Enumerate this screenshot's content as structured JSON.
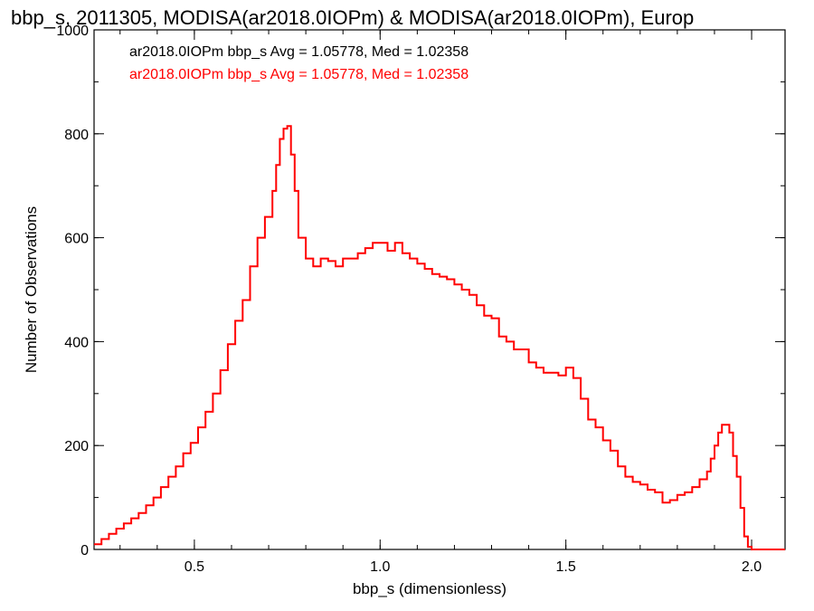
{
  "chart_data": {
    "type": "line",
    "title": "bbp_s, 2011305, MODISA(ar2018.0IOPm) & MODISA(ar2018.0IOPm), Europ",
    "xlabel": "bbp_s (dimensionless)",
    "ylabel": "Number of Observations",
    "xlim": [
      0.23,
      2.09
    ],
    "ylim": [
      0,
      1000
    ],
    "xticks": [
      {
        "v": 0.5,
        "label": "0.5"
      },
      {
        "v": 1.0,
        "label": "1.0"
      },
      {
        "v": 1.5,
        "label": "1.5"
      },
      {
        "v": 2.0,
        "label": "2.0"
      }
    ],
    "yticks": [
      {
        "v": 0,
        "label": "0"
      },
      {
        "v": 200,
        "label": "200"
      },
      {
        "v": 400,
        "label": "400"
      },
      {
        "v": 600,
        "label": "600"
      },
      {
        "v": 800,
        "label": "800"
      },
      {
        "v": 1000,
        "label": "1000"
      }
    ],
    "x_minor_step": 0.1,
    "y_minor_step": 100,
    "grid": false,
    "legend_position": "top-left",
    "annotations": [
      {
        "text": "ar2018.0IOPm bbp_s Avg = 1.05778, Med = 1.02358",
        "color": "#000000"
      },
      {
        "text": "ar2018.0IOPm bbp_s Avg = 1.05778, Med = 1.02358",
        "color": "#ff0000"
      }
    ],
    "series": [
      {
        "color": "#ff0000",
        "style": "step",
        "x": [
          0.23,
          0.25,
          0.27,
          0.29,
          0.31,
          0.33,
          0.35,
          0.37,
          0.39,
          0.41,
          0.43,
          0.45,
          0.47,
          0.49,
          0.51,
          0.53,
          0.55,
          0.57,
          0.59,
          0.61,
          0.63,
          0.65,
          0.67,
          0.69,
          0.71,
          0.72,
          0.73,
          0.74,
          0.75,
          0.76,
          0.77,
          0.78,
          0.8,
          0.82,
          0.84,
          0.86,
          0.88,
          0.9,
          0.92,
          0.94,
          0.96,
          0.98,
          1.0,
          1.02,
          1.04,
          1.06,
          1.08,
          1.1,
          1.12,
          1.14,
          1.16,
          1.18,
          1.2,
          1.22,
          1.24,
          1.26,
          1.28,
          1.3,
          1.32,
          1.34,
          1.36,
          1.38,
          1.4,
          1.42,
          1.44,
          1.46,
          1.48,
          1.5,
          1.52,
          1.54,
          1.56,
          1.58,
          1.6,
          1.62,
          1.64,
          1.66,
          1.68,
          1.7,
          1.72,
          1.74,
          1.76,
          1.78,
          1.8,
          1.82,
          1.84,
          1.86,
          1.88,
          1.89,
          1.9,
          1.91,
          1.92,
          1.93,
          1.94,
          1.95,
          1.96,
          1.97,
          1.98,
          1.99,
          2.0,
          2.02,
          2.04,
          2.06,
          2.09
        ],
        "values": [
          10,
          20,
          30,
          40,
          50,
          60,
          70,
          85,
          100,
          120,
          140,
          160,
          185,
          205,
          235,
          265,
          300,
          345,
          395,
          440,
          480,
          545,
          600,
          640,
          690,
          740,
          790,
          810,
          815,
          760,
          690,
          600,
          560,
          545,
          560,
          555,
          545,
          560,
          560,
          570,
          580,
          590,
          590,
          575,
          590,
          570,
          560,
          550,
          540,
          530,
          525,
          520,
          510,
          500,
          490,
          470,
          450,
          445,
          410,
          400,
          385,
          385,
          360,
          350,
          340,
          340,
          335,
          350,
          330,
          290,
          250,
          235,
          210,
          190,
          160,
          140,
          130,
          125,
          115,
          110,
          90,
          95,
          105,
          110,
          120,
          135,
          150,
          175,
          200,
          225,
          240,
          240,
          225,
          180,
          140,
          80,
          25,
          5,
          0,
          0,
          0,
          0,
          0
        ]
      }
    ]
  }
}
